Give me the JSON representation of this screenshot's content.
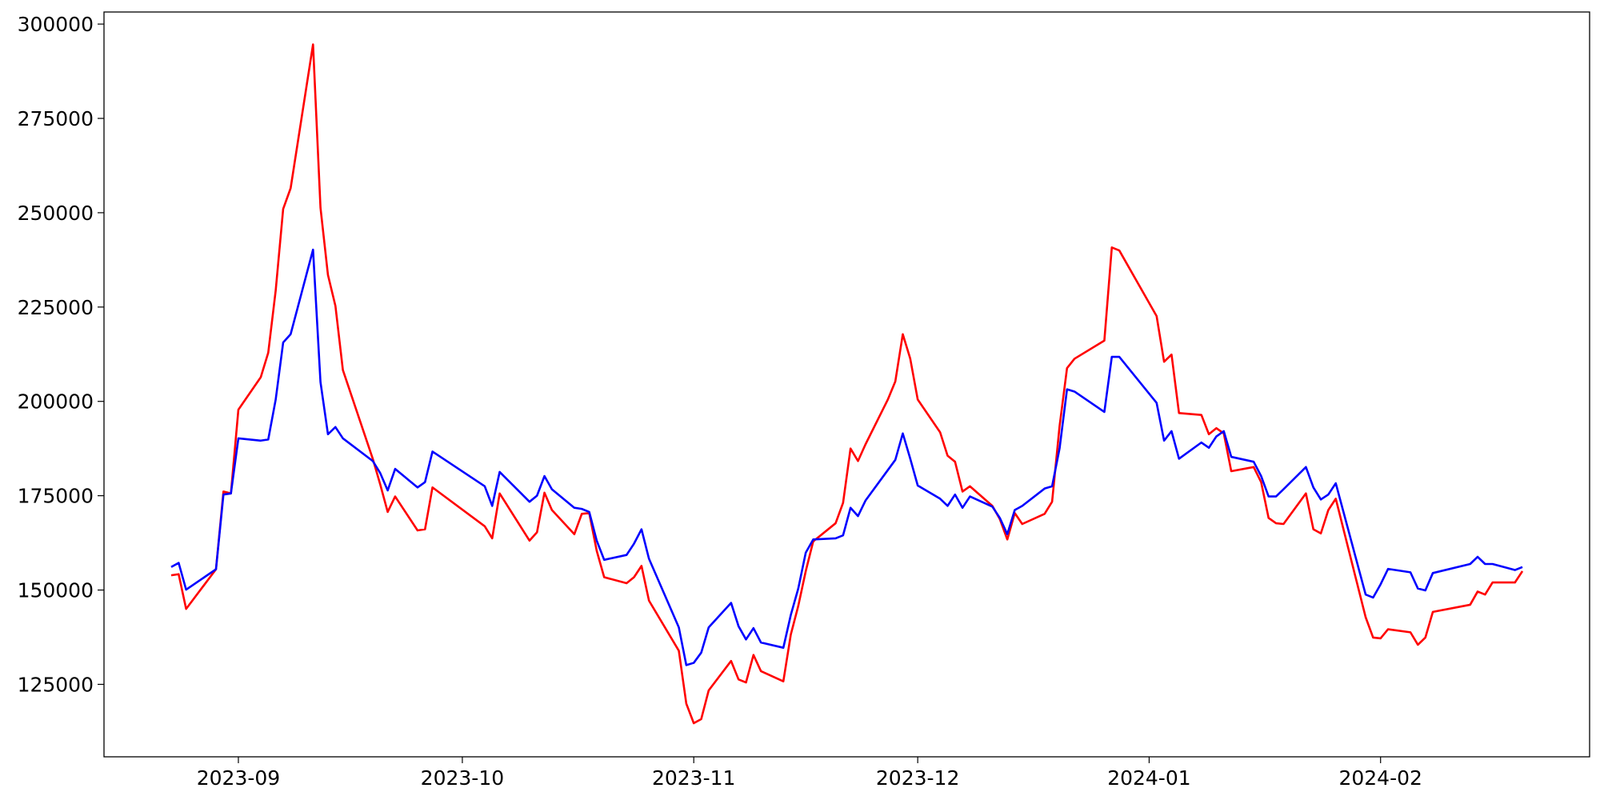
{
  "chart_data": {
    "type": "line",
    "x": [
      "2023-08-23",
      "2023-08-24",
      "2023-08-25",
      "2023-08-29",
      "2023-08-30",
      "2023-08-31",
      "2023-09-01",
      "2023-09-04",
      "2023-09-05",
      "2023-09-06",
      "2023-09-07",
      "2023-09-08",
      "2023-09-11",
      "2023-09-12",
      "2023-09-13",
      "2023-09-14",
      "2023-09-15",
      "2023-09-19",
      "2023-09-20",
      "2023-09-21",
      "2023-09-22",
      "2023-09-25",
      "2023-09-26",
      "2023-09-27",
      "2023-10-04",
      "2023-10-05",
      "2023-10-06",
      "2023-10-10",
      "2023-10-11",
      "2023-10-12",
      "2023-10-13",
      "2023-10-16",
      "2023-10-17",
      "2023-10-18",
      "2023-10-19",
      "2023-10-20",
      "2023-10-23",
      "2023-10-24",
      "2023-10-25",
      "2023-10-26",
      "2023-10-30",
      "2023-10-31",
      "2023-11-01",
      "2023-11-02",
      "2023-11-03",
      "2023-11-06",
      "2023-11-07",
      "2023-11-08",
      "2023-11-09",
      "2023-11-10",
      "2023-11-13",
      "2023-11-14",
      "2023-11-15",
      "2023-11-16",
      "2023-11-17",
      "2023-11-20",
      "2023-11-21",
      "2023-11-22",
      "2023-11-23",
      "2023-11-24",
      "2023-11-27",
      "2023-11-28",
      "2023-11-29",
      "2023-11-30",
      "2023-12-01",
      "2023-12-04",
      "2023-12-05",
      "2023-12-06",
      "2023-12-07",
      "2023-12-08",
      "2023-12-11",
      "2023-12-12",
      "2023-12-13",
      "2023-12-14",
      "2023-12-15",
      "2023-12-18",
      "2023-12-19",
      "2023-12-20",
      "2023-12-21",
      "2023-12-22",
      "2023-12-26",
      "2023-12-27",
      "2023-12-28",
      "2024-01-02",
      "2024-01-03",
      "2024-01-04",
      "2024-01-05",
      "2024-01-08",
      "2024-01-09",
      "2024-01-10",
      "2024-01-11",
      "2024-01-12",
      "2024-01-15",
      "2024-01-16",
      "2024-01-17",
      "2024-01-18",
      "2024-01-19",
      "2024-01-22",
      "2024-01-23",
      "2024-01-24",
      "2024-01-25",
      "2024-01-26",
      "2024-01-30",
      "2024-01-31",
      "2024-02-01",
      "2024-02-02",
      "2024-02-05",
      "2024-02-06",
      "2024-02-07",
      "2024-02-08",
      "2024-02-13",
      "2024-02-14",
      "2024-02-15",
      "2024-02-16",
      "2024-02-19",
      "2024-02-20"
    ],
    "series": [
      {
        "color": "#ff0000",
        "values": [
          153900,
          154200,
          145000,
          155500,
          176100,
          175600,
          197800,
          206400,
          212900,
          229400,
          251000,
          256500,
          294600,
          251300,
          233500,
          225300,
          208300,
          184800,
          178000,
          170700,
          174800,
          165800,
          166100,
          177200,
          166900,
          163700,
          175600,
          163100,
          165300,
          175800,
          171200,
          164800,
          170200,
          170400,
          160400,
          153400,
          151800,
          153400,
          156400,
          147200,
          133900,
          119900,
          114700,
          115800,
          123400,
          131200,
          126300,
          125500,
          132800,
          128500,
          125800,
          138200,
          145800,
          155000,
          162900,
          167700,
          173100,
          187500,
          184200,
          188600,
          200500,
          205300,
          217800,
          211300,
          200500,
          191800,
          185600,
          184000,
          176100,
          177500,
          172300,
          168800,
          163400,
          170400,
          167500,
          170200,
          173400,
          193400,
          208800,
          211300,
          216100,
          240800,
          240000,
          222600,
          210500,
          212400,
          196900,
          196400,
          191300,
          192900,
          191500,
          181500,
          182600,
          178600,
          169100,
          167700,
          167500,
          175600,
          166100,
          165000,
          171200,
          174200,
          142800,
          137400,
          137200,
          139600,
          138800,
          135500,
          137400,
          144200,
          146100,
          149600,
          148800,
          152000,
          152000,
          155000
        ]
      },
      {
        "color": "#0000ff",
        "values": [
          156100,
          157200,
          150100,
          155500,
          175300,
          175600,
          190200,
          189600,
          189900,
          200500,
          215600,
          217800,
          240200,
          205100,
          191300,
          193200,
          190200,
          184200,
          181000,
          176400,
          182100,
          177200,
          178600,
          186700,
          177500,
          172300,
          181300,
          173400,
          175000,
          180200,
          176700,
          171800,
          171500,
          170700,
          163100,
          158000,
          159300,
          162300,
          166100,
          158300,
          140100,
          130100,
          130700,
          133400,
          140100,
          146600,
          140400,
          136900,
          139900,
          136100,
          134700,
          143400,
          150400,
          159900,
          163400,
          163700,
          164500,
          171800,
          169600,
          173700,
          181800,
          184500,
          191500,
          184800,
          177700,
          174200,
          172300,
          175300,
          171800,
          174800,
          172100,
          169100,
          164800,
          171200,
          172300,
          176900,
          177500,
          187500,
          203200,
          202600,
          197200,
          211800,
          211800,
          199600,
          189600,
          192100,
          184800,
          189100,
          187700,
          190700,
          192100,
          185300,
          184000,
          180200,
          174800,
          174800,
          176700,
          182600,
          177200,
          174000,
          175300,
          178300,
          148800,
          148000,
          151500,
          155600,
          154700,
          150400,
          149900,
          154500,
          156900,
          158800,
          156900,
          156900,
          155300,
          156100
        ]
      }
    ],
    "xlim": [
      "2023-08-14",
      "2024-02-29"
    ],
    "xticks": [
      {
        "value": "2023-09-01",
        "label": "2023-09"
      },
      {
        "value": "2023-10-01",
        "label": "2023-10"
      },
      {
        "value": "2023-11-01",
        "label": "2023-11"
      },
      {
        "value": "2023-12-01",
        "label": "2023-12"
      },
      {
        "value": "2024-01-01",
        "label": "2024-01"
      },
      {
        "value": "2024-02-01",
        "label": "2024-02"
      }
    ],
    "ylim": [
      105800,
      303200
    ],
    "yticks": [
      125000,
      150000,
      175000,
      200000,
      225000,
      250000,
      275000,
      300000
    ],
    "grid": false
  }
}
